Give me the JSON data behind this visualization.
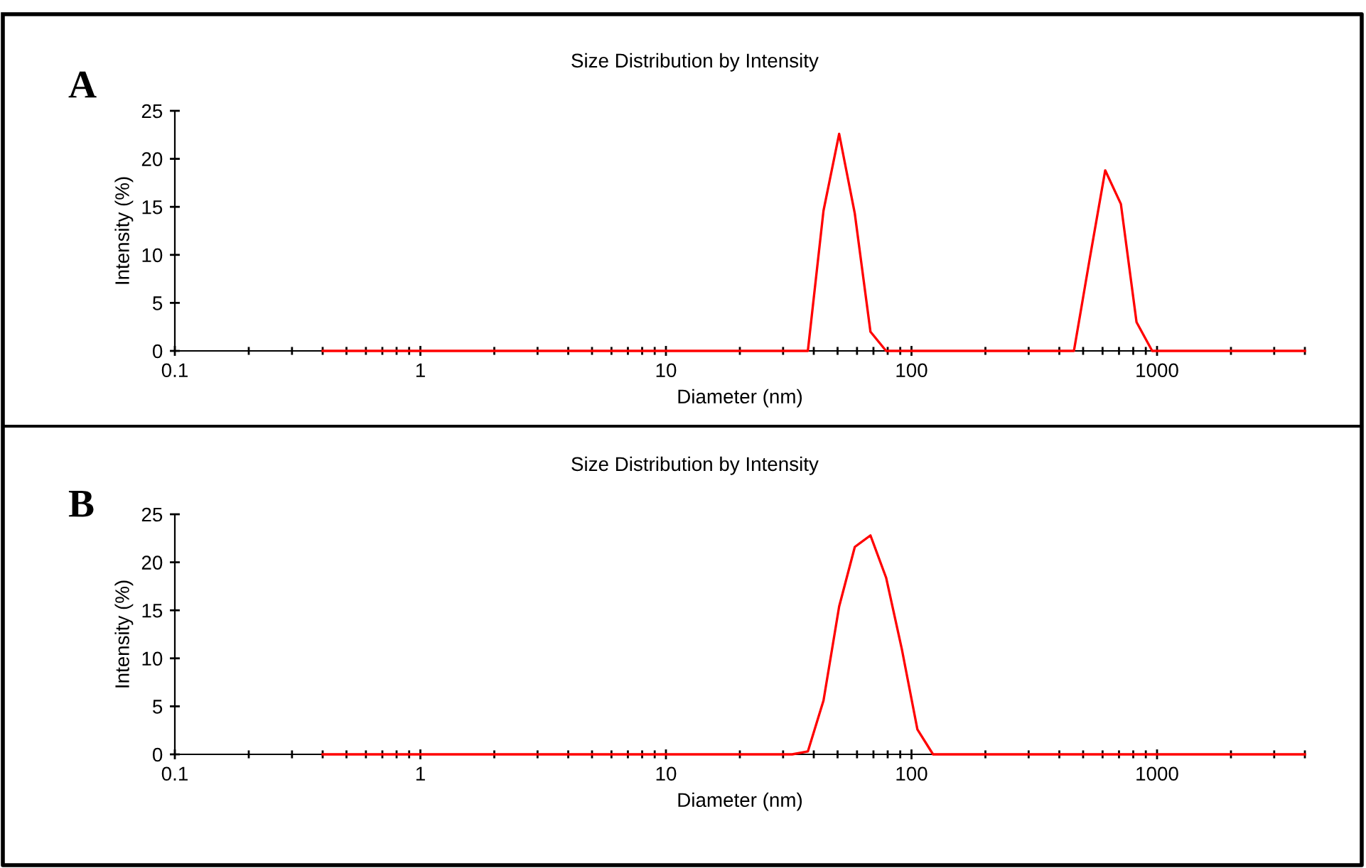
{
  "chart_data": [
    {
      "type": "line",
      "title": "Size Distribution by Intensity",
      "xlabel": "Diameter (nm)",
      "ylabel": "Intensity (%)",
      "annotations": [
        "A"
      ],
      "log": "x",
      "grid": false,
      "series": [
        {
          "color": "#ff0000",
          "x": [
            0.4,
            37.84,
            43.82,
            50.75,
            58.77,
            68.06,
            78.82,
            458.7,
            531.2,
            615.1,
            712.4,
            825.0,
            955.4,
            4000
          ],
          "values": [
            0,
            0,
            14.6,
            22.6,
            14.3,
            2.0,
            0,
            0,
            9.5,
            18.8,
            15.3,
            3.0,
            0,
            0
          ]
        }
      ],
      "xlim": [
        0.1,
        4000
      ],
      "ylim": [
        0,
        25
      ],
      "xticks": [
        0.1,
        1,
        10,
        100,
        1000
      ],
      "yticks": [
        0,
        5,
        10,
        15,
        20,
        25
      ]
    },
    {
      "type": "line",
      "title": "Size Distribution by Intensity",
      "xlabel": "Diameter (nm)",
      "ylabel": "Intensity (%)",
      "annotations": [
        "B"
      ],
      "log": "x",
      "grid": false,
      "series": [
        {
          "color": "#ff0000",
          "x": [
            0.4,
            32.67,
            37.84,
            43.82,
            50.75,
            58.77,
            68.06,
            78.82,
            91.28,
            105.7,
            122.4,
            4000
          ],
          "values": [
            0,
            0,
            0.3,
            5.6,
            15.4,
            21.6,
            22.8,
            18.4,
            11.0,
            2.6,
            0,
            0
          ]
        }
      ],
      "xlim": [
        0.1,
        4000
      ],
      "ylim": [
        0,
        25
      ],
      "xticks": [
        0.1,
        1,
        10,
        100,
        1000
      ],
      "yticks": [
        0,
        5,
        10,
        15,
        20,
        25
      ]
    }
  ]
}
